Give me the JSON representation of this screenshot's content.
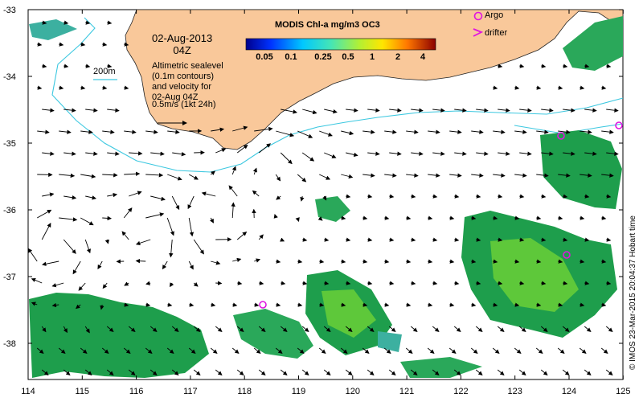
{
  "map": {
    "title_date": "02-Aug-2013",
    "title_time": "04Z",
    "isobath_label": "200m",
    "altimetry_lines": [
      "Altimetric sealevel",
      "(0.1m contours)",
      "and velocity for",
      "02-Aug 04Z"
    ],
    "velocity_scale_label": "0.5m/s (1kt 24h)",
    "colorbar": {
      "title": "MODIS Chl-a mg/m3 OC3",
      "ticks": [
        "0.05",
        "0.1",
        "0.25",
        "0.5",
        "1",
        "2",
        "4"
      ]
    },
    "legend": {
      "argo": "Argo",
      "drifter": "drifter"
    },
    "copyright": "© IMOS 23-Mar-2015 20:04:37 Hobart time",
    "lon_ticks": [
      "114",
      "115",
      "116",
      "117",
      "118",
      "119",
      "120",
      "121",
      "122",
      "123",
      "124",
      "125"
    ],
    "lat_ticks": [
      "-33",
      "-34",
      "-35",
      "-36",
      "-37",
      "-38"
    ],
    "colors": {
      "land": "#f9c89a",
      "isobath": "#3cc8e0",
      "argo": "#e014e0",
      "chl_low": "#1e9e4c",
      "chl_high": "#6ed23c"
    }
  }
}
